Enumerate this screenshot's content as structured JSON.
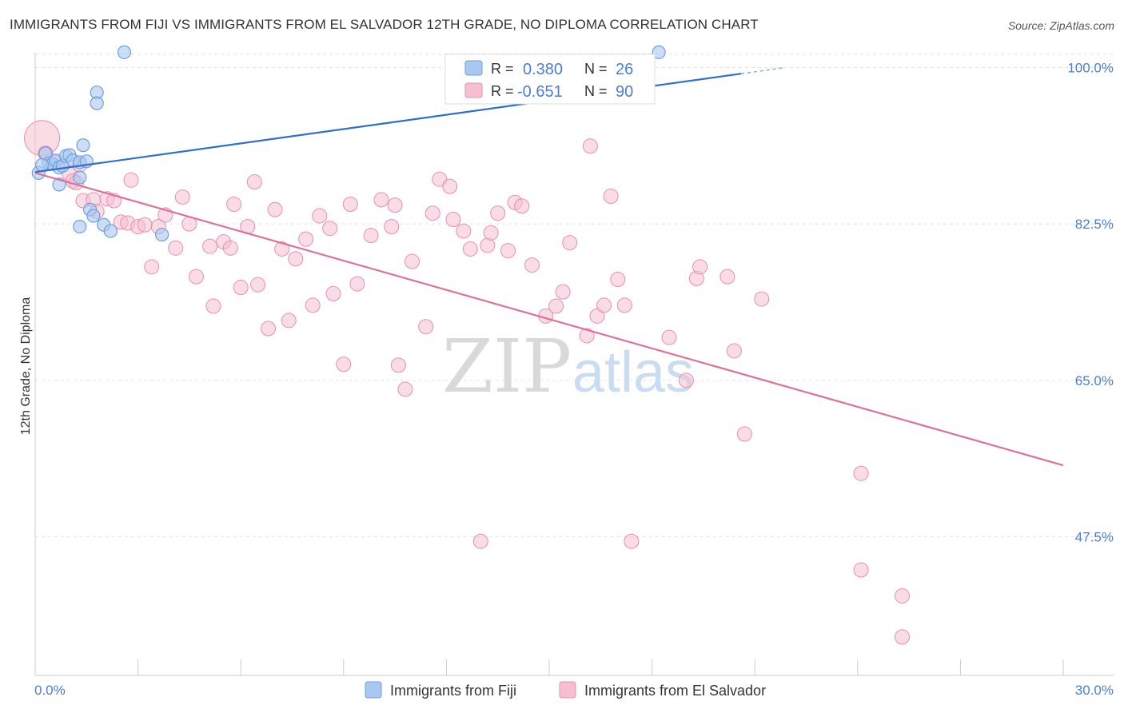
{
  "title": "IMMIGRANTS FROM FIJI VS IMMIGRANTS FROM EL SALVADOR 12TH GRADE, NO DIPLOMA CORRELATION CHART",
  "source": "Source: ZipAtlas.com",
  "watermark": {
    "zip": "ZIP",
    "atlas": "atlas"
  },
  "stats": {
    "r_label": "R =",
    "n_label": "N =",
    "fiji": {
      "r": "0.380",
      "n": "26"
    },
    "salvador": {
      "r": "-0.651",
      "n": "90"
    }
  },
  "colors": {
    "fiji_fill": "#a9c8f0",
    "fiji_stroke": "#6f9fdf",
    "fiji_line": "#2f6fce",
    "salvador_fill": "#f6bfd0",
    "salvador_stroke": "#e98fae",
    "salvador_line": "#e0709a",
    "tick_text": "#4a7fd4",
    "grid": "#e3e3e3"
  },
  "chart_data": {
    "type": "scatter",
    "title": "IMMIGRANTS FROM FIJI VS IMMIGRANTS FROM EL SALVADOR 12TH GRADE, NO DIPLOMA CORRELATION CHART",
    "xlabel": "",
    "ylabel": "12th Grade, No Diploma",
    "xlim": [
      0,
      30
    ],
    "ylim": [
      32,
      102
    ],
    "x_tick_labels": [
      "0.0%",
      "30.0%"
    ],
    "y_ticks": [
      47.5,
      65.0,
      82.5,
      100.0
    ],
    "y_tick_labels": [
      "47.5%",
      "65.0%",
      "82.5%",
      "100.0%"
    ],
    "grid": true,
    "legend_position": "bottom-center",
    "series": [
      {
        "name": "Immigrants from Fiji",
        "r": 0.38,
        "n": 26,
        "trend": {
          "x": [
            0,
            20.6
          ],
          "y": [
            88.3,
            99.3
          ]
        },
        "points": [
          [
            0.1,
            88.2
          ],
          [
            0.3,
            90.4
          ],
          [
            0.4,
            89.3
          ],
          [
            0.5,
            89.2
          ],
          [
            0.6,
            89.6
          ],
          [
            0.7,
            88.8
          ],
          [
            0.8,
            89.0
          ],
          [
            0.9,
            90.1
          ],
          [
            1.0,
            90.2
          ],
          [
            1.1,
            89.6
          ],
          [
            1.3,
            89.4
          ],
          [
            1.4,
            91.3
          ],
          [
            1.5,
            89.5
          ],
          [
            0.7,
            86.9
          ],
          [
            1.3,
            87.7
          ],
          [
            1.6,
            84.1
          ],
          [
            1.7,
            83.4
          ],
          [
            1.3,
            82.2
          ],
          [
            2.0,
            82.4
          ],
          [
            2.2,
            81.7
          ],
          [
            2.6,
            101.7
          ],
          [
            1.8,
            97.2
          ],
          [
            1.8,
            96.0
          ],
          [
            3.7,
            81.3
          ],
          [
            18.2,
            101.7
          ],
          [
            0.2,
            89.1
          ]
        ]
      },
      {
        "name": "Immigrants from El Salvador",
        "r": -0.651,
        "n": 90,
        "trend": {
          "x": [
            0,
            30
          ],
          "y": [
            88.2,
            55.5
          ]
        },
        "points": [
          [
            0.2,
            92.1
          ],
          [
            0.3,
            90.4
          ],
          [
            0.6,
            89.4
          ],
          [
            1.0,
            88.1
          ],
          [
            1.1,
            87.3
          ],
          [
            1.2,
            87.1
          ],
          [
            1.3,
            89.1
          ],
          [
            1.4,
            85.1
          ],
          [
            1.7,
            85.2
          ],
          [
            1.8,
            83.9
          ],
          [
            2.1,
            85.3
          ],
          [
            2.3,
            85.1
          ],
          [
            2.5,
            82.7
          ],
          [
            2.7,
            82.6
          ],
          [
            2.8,
            87.4
          ],
          [
            3.0,
            82.2
          ],
          [
            3.2,
            82.4
          ],
          [
            3.4,
            77.7
          ],
          [
            3.6,
            82.2
          ],
          [
            3.8,
            83.5
          ],
          [
            4.1,
            79.8
          ],
          [
            4.3,
            85.5
          ],
          [
            4.5,
            82.5
          ],
          [
            4.7,
            76.6
          ],
          [
            5.1,
            80.0
          ],
          [
            5.2,
            73.3
          ],
          [
            5.5,
            80.5
          ],
          [
            5.7,
            79.8
          ],
          [
            5.8,
            84.7
          ],
          [
            6.0,
            75.4
          ],
          [
            6.2,
            82.2
          ],
          [
            6.4,
            87.2
          ],
          [
            6.5,
            75.7
          ],
          [
            6.8,
            70.8
          ],
          [
            7.0,
            84.1
          ],
          [
            7.2,
            79.7
          ],
          [
            7.4,
            71.7
          ],
          [
            7.6,
            78.6
          ],
          [
            7.9,
            80.8
          ],
          [
            8.1,
            73.4
          ],
          [
            8.3,
            83.4
          ],
          [
            8.6,
            82.0
          ],
          [
            8.7,
            74.7
          ],
          [
            9.0,
            66.8
          ],
          [
            9.2,
            84.7
          ],
          [
            9.4,
            75.8
          ],
          [
            9.8,
            81.2
          ],
          [
            10.1,
            85.2
          ],
          [
            10.4,
            82.2
          ],
          [
            10.5,
            84.6
          ],
          [
            10.6,
            66.7
          ],
          [
            10.8,
            64.0
          ],
          [
            11.0,
            78.3
          ],
          [
            11.4,
            71.0
          ],
          [
            11.6,
            83.7
          ],
          [
            11.8,
            87.5
          ],
          [
            12.1,
            86.7
          ],
          [
            12.2,
            83.0
          ],
          [
            12.5,
            81.7
          ],
          [
            12.7,
            79.7
          ],
          [
            13.0,
            47.0
          ],
          [
            13.2,
            80.1
          ],
          [
            13.3,
            81.5
          ],
          [
            13.5,
            83.7
          ],
          [
            13.8,
            79.5
          ],
          [
            14.0,
            84.9
          ],
          [
            14.2,
            84.5
          ],
          [
            14.5,
            77.9
          ],
          [
            14.9,
            72.2
          ],
          [
            15.2,
            73.3
          ],
          [
            15.4,
            74.9
          ],
          [
            15.6,
            80.4
          ],
          [
            16.1,
            70.0
          ],
          [
            16.2,
            91.2
          ],
          [
            16.4,
            72.2
          ],
          [
            16.6,
            73.4
          ],
          [
            16.8,
            85.6
          ],
          [
            17.0,
            76.3
          ],
          [
            17.2,
            73.4
          ],
          [
            17.4,
            47.0
          ],
          [
            18.5,
            69.8
          ],
          [
            19.0,
            65.0
          ],
          [
            19.3,
            76.4
          ],
          [
            19.4,
            77.7
          ],
          [
            20.2,
            76.6
          ],
          [
            20.4,
            68.3
          ],
          [
            20.7,
            59.0
          ],
          [
            21.2,
            74.1
          ],
          [
            24.1,
            54.6
          ],
          [
            24.1,
            43.8
          ]
        ],
        "extra_points": [
          [
            25.3,
            40.9
          ],
          [
            25.3,
            36.3
          ]
        ]
      }
    ]
  },
  "legend": {
    "fiji_label": "Immigrants from Fiji",
    "salvador_label": "Immigrants from El Salvador"
  }
}
